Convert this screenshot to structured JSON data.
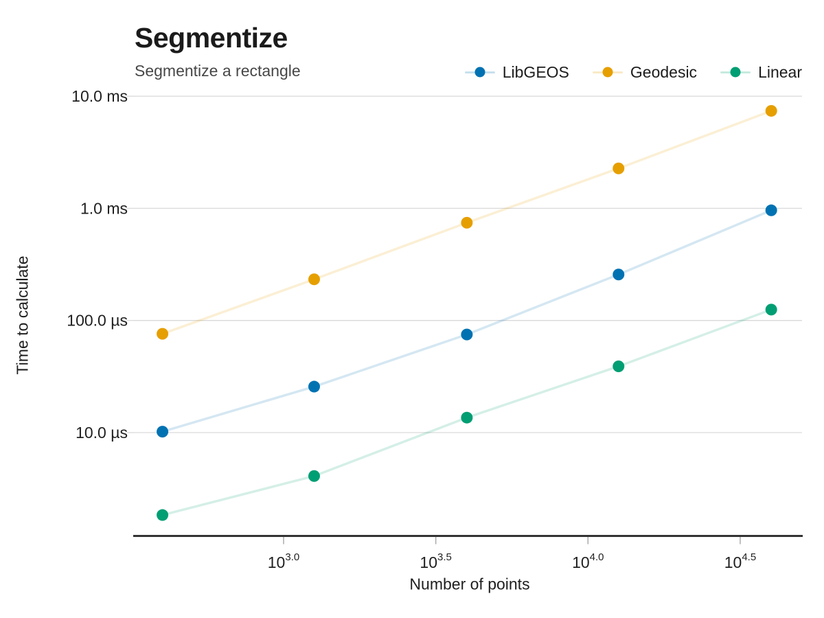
{
  "header": {
    "title": "Segmentize",
    "subtitle": "Segmentize a rectangle"
  },
  "axes": {
    "x_label": "Number of points",
    "y_label": "Time to calculate"
  },
  "chart_data": {
    "type": "line",
    "title": "Segmentize",
    "subtitle": "Segmentize a rectangle",
    "xlabel": "Number of points",
    "ylabel": "Time to calculate",
    "x_scale": "log10",
    "y_scale": "log10",
    "y_unit": "microseconds",
    "grid": "horizontal-only",
    "legend_position": "top-right",
    "x": [
      400,
      1260,
      4000,
      12600,
      40000
    ],
    "series": [
      {
        "name": "LibGEOS",
        "color": "#0072B2",
        "values_us": [
          10.2,
          25.7,
          75,
          257,
          960
        ]
      },
      {
        "name": "Geodesic",
        "color": "#E69F00",
        "values_us": [
          76,
          233,
          744,
          2270,
          7400
        ]
      },
      {
        "name": "Linear",
        "color": "#009E73",
        "values_us": [
          1.84,
          4.1,
          13.6,
          39,
          125
        ]
      }
    ],
    "x_ticks": [
      {
        "base": "10",
        "exponent": "3.0"
      },
      {
        "base": "10",
        "exponent": "3.5"
      },
      {
        "base": "10",
        "exponent": "4.0"
      },
      {
        "base": "10",
        "exponent": "4.5"
      }
    ],
    "y_ticks": [
      {
        "value_us": 10000,
        "label": "10.0 ms"
      },
      {
        "value_us": 1000,
        "label": "1.0 ms"
      },
      {
        "value_us": 100,
        "label": "100.0 µs"
      },
      {
        "value_us": 10,
        "label": "10.0 µs"
      }
    ],
    "xlim_log10": [
      2.51,
      4.7
    ],
    "ylim_log10_us": [
      0.08,
      4.07
    ]
  },
  "style": {
    "background": "#ffffff",
    "title_color": "#1b1b1b",
    "subtitle_color": "#474747",
    "text_color": "#1f1f1f",
    "gridline_color": "#d9d9d9",
    "axis_spine_color": "#333333",
    "tick_mark_color": "#aaaaaa"
  }
}
